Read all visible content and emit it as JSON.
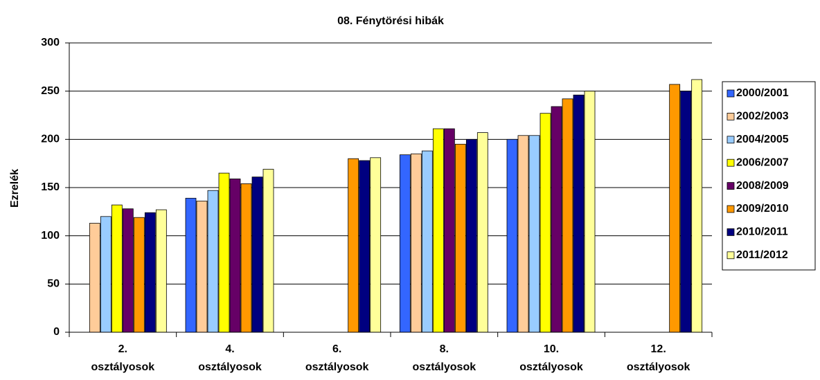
{
  "chart_data": {
    "type": "bar",
    "title": "08. Fénytörési  hibák",
    "y_label": "Ezrelék",
    "categories": [
      "2. osztályosok",
      "4. osztályosok",
      "6. osztályosok",
      "8. osztályosok",
      "10. osztályosok",
      "12. osztályosok"
    ],
    "series": [
      {
        "name": "2000/2001",
        "color": "#3366ff",
        "values": [
          null,
          139,
          null,
          184,
          200,
          null
        ]
      },
      {
        "name": "2002/2003",
        "color": "#ffcc99",
        "values": [
          113,
          136,
          null,
          185,
          204,
          null
        ]
      },
      {
        "name": "2004/2005",
        "color": "#99ccff",
        "values": [
          120,
          147,
          null,
          188,
          204,
          null
        ]
      },
      {
        "name": "2006/2007",
        "color": "#ffff00",
        "values": [
          132,
          165,
          null,
          211,
          227,
          null
        ]
      },
      {
        "name": "2008/2009",
        "color": "#660066",
        "values": [
          128,
          159,
          null,
          211,
          234,
          null
        ]
      },
      {
        "name": "2009/2010",
        "color": "#ff9900",
        "values": [
          119,
          154,
          180,
          195,
          242,
          257
        ]
      },
      {
        "name": "2010/2011",
        "color": "#000080",
        "values": [
          124,
          161,
          178,
          200,
          246,
          250
        ]
      },
      {
        "name": "2011/2012",
        "color": "#ffff99",
        "values": [
          127,
          169,
          181,
          207,
          250,
          262
        ]
      }
    ],
    "ylim": [
      0,
      300
    ],
    "yticks": [
      0,
      50,
      100,
      150,
      200,
      250,
      300
    ],
    "grid": true,
    "legend": "right"
  }
}
